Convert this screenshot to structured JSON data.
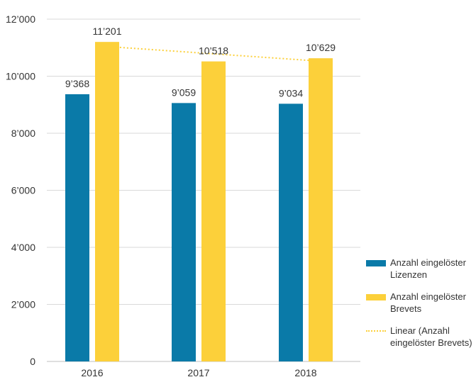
{
  "chart_data": {
    "type": "bar",
    "categories": [
      "2016",
      "2017",
      "2018"
    ],
    "series": [
      {
        "name": "Anzahl eingelöster Lizenzen",
        "values": [
          9368,
          9059,
          9034
        ],
        "labels": [
          "9’368",
          "9’059",
          "9’034"
        ],
        "color": "#0a7aa8"
      },
      {
        "name": "Anzahl eingelöster Brevets",
        "values": [
          11201,
          10518,
          10629
        ],
        "labels": [
          "11’201",
          "10’518",
          "10’629"
        ],
        "color": "#fcd03a"
      }
    ],
    "trendline": {
      "name": "Linear (Anzahl eingelöster Brevets)",
      "series": "Anzahl eingelöster Brevets",
      "type": "linear",
      "color": "#fcd03a"
    },
    "yticks": [
      {
        "value": 0,
        "label": "0"
      },
      {
        "value": 2000,
        "label": "2’000"
      },
      {
        "value": 4000,
        "label": "4’000"
      },
      {
        "value": 6000,
        "label": "6’000"
      },
      {
        "value": 8000,
        "label": "8’000"
      },
      {
        "value": 10000,
        "label": "10’000"
      },
      {
        "value": 12000,
        "label": "12’000"
      }
    ],
    "ylim": [
      0,
      12000
    ],
    "grid": true,
    "legend": "right"
  }
}
